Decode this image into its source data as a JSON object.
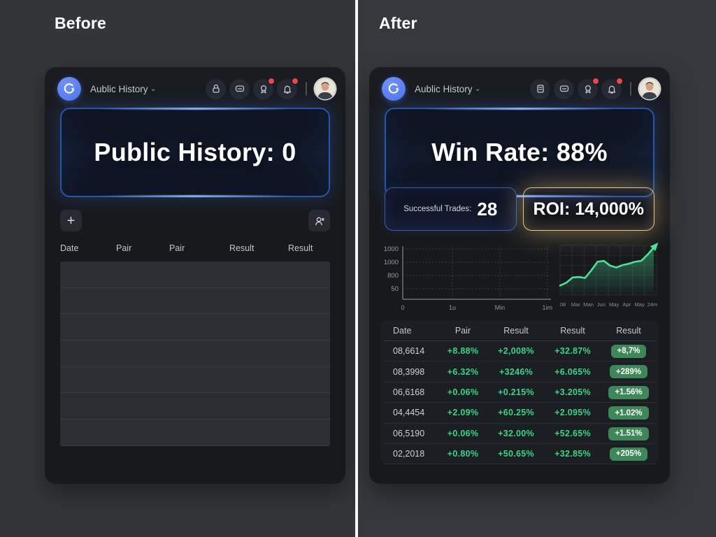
{
  "labels": {
    "before": "Before",
    "after": "After"
  },
  "app": {
    "title": "Aublic History",
    "caret": "⌄"
  },
  "header_icons": {
    "before": [
      "lock-icon",
      "chat-icon",
      "award-icon",
      "bell-icon"
    ],
    "after": [
      "file-icon",
      "chat-icon",
      "award-icon",
      "bell-icon"
    ],
    "notification_dots_on": [
      "award-icon",
      "bell-icon"
    ]
  },
  "before_panel": {
    "banner": "Public History: 0",
    "toolbar": {
      "add_label": "+"
    },
    "table": {
      "headers": [
        "Date",
        "Pair",
        "Pair",
        "Result",
        "Result"
      ],
      "empty_row_count": 7
    }
  },
  "after_panel": {
    "banner": "Win Rate: 88%",
    "stats": {
      "trades_label": "Successful Trades:",
      "trades_value": "28",
      "roi_text": "ROI: 14,000%"
    },
    "table": {
      "headers": [
        "Date",
        "Pair",
        "Result",
        "Result",
        "Result"
      ],
      "rows": [
        [
          "08,6614",
          "+8.88%",
          "+2,008%",
          "+32.87%",
          "+8,7%"
        ],
        [
          "08,3998",
          "+6.32%",
          "+3246%",
          "+6.065%",
          "+289%"
        ],
        [
          "06,6168",
          "+0.06%",
          "+0.215%",
          "+3.205%",
          "+1.56%"
        ],
        [
          "04,4454",
          "+2.09%",
          "+60.25%",
          "+2.095%",
          "+1.02%"
        ],
        [
          "06,5190",
          "+0.06%",
          "+32.00%",
          "+52.65%",
          "+1.51%"
        ],
        [
          "02,2018",
          "+0.80%",
          "+50.65%",
          "+32.85%",
          "+205%"
        ]
      ]
    }
  },
  "chart_data": [
    {
      "type": "line",
      "title": "empty performance axes",
      "y_ticks": [
        "1000",
        "1000",
        "800",
        "50"
      ],
      "x_ticks": [
        "0",
        "1u",
        "Min",
        "1im"
      ],
      "series": [],
      "grid": "dotted",
      "legend": "none"
    },
    {
      "type": "area",
      "title": "growth curve with up arrow",
      "x_ticks": [
        "08",
        "Mar",
        "Man",
        "Jun",
        "May",
        "Apr",
        "May",
        "24m"
      ],
      "series": [
        {
          "name": "performance",
          "values": [
            20,
            26,
            37,
            38,
            36,
            52,
            70,
            72,
            62,
            58,
            63,
            66,
            70,
            72,
            85,
            100
          ]
        }
      ],
      "ylim": [
        0,
        100
      ],
      "grid": "on",
      "line_color": "#4ae398",
      "annotation": "arrow-up-right"
    }
  ],
  "colors": {
    "accent_blue": "#5a7df2",
    "banner_border": "#2d54a6",
    "gold": "#ecc47e",
    "green": "#3bd487",
    "badge_green": "#3e8759",
    "notification_red": "#e5484d"
  }
}
